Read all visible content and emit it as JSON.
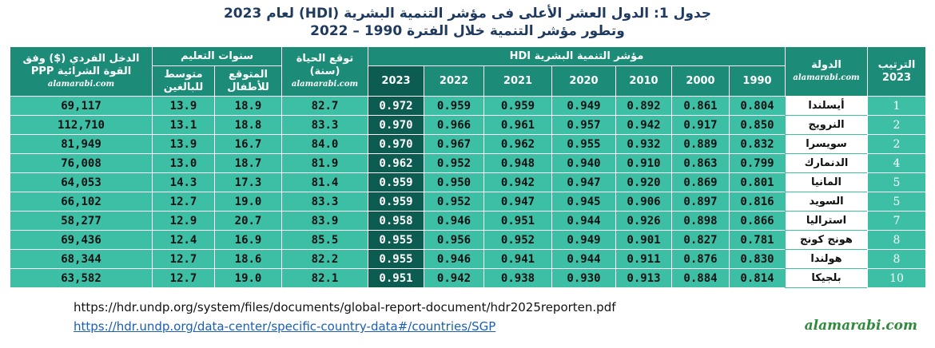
{
  "title": {
    "line1": "جدول 1:  الدول العشر الأعلى فى مؤشر التنمية البشرية  (HDI)  لعام 2023",
    "line2": "وتطور مؤشر التنمية خلال الفترة  1990 – 2022"
  },
  "table": {
    "headers": {
      "rank": "الترتيب 2023",
      "country": "الدولة",
      "country_site": "alamarabi.com",
      "hdi": "مؤشر التنمية البشرية HDI",
      "years": [
        "1990",
        "2000",
        "2010",
        "2020",
        "2021",
        "2022",
        "2023"
      ],
      "life": "توقع الحياة (سنة)",
      "life_site": "alamarabi.com",
      "education": "سنوات التعليم",
      "expected": "المتوقع للأطفال",
      "mean": "متوسط للبالغين",
      "income": "الدخل الفردي ($) وفق القوة الشرائية PPP",
      "income_site": "alamarabi.com"
    },
    "rows": [
      [
        "1",
        "أيسلندا",
        "0.804",
        "0.861",
        "0.892",
        "0.949",
        "0.959",
        "0.959",
        "0.972",
        "82.7",
        "18.9",
        "13.9",
        "69,117"
      ],
      [
        "2",
        "النرويج",
        "0.850",
        "0.917",
        "0.942",
        "0.957",
        "0.961",
        "0.966",
        "0.970",
        "83.3",
        "18.8",
        "13.1",
        "112,710"
      ],
      [
        "2",
        "سويسرا",
        "0.832",
        "0.889",
        "0.932",
        "0.955",
        "0.962",
        "0.967",
        "0.970",
        "84.0",
        "16.7",
        "13.9",
        "81,949"
      ],
      [
        "4",
        "الدنمارك",
        "0.799",
        "0.863",
        "0.910",
        "0.940",
        "0.948",
        "0.952",
        "0.962",
        "81.9",
        "18.7",
        "13.0",
        "76,008"
      ],
      [
        "5",
        "المانيا",
        "0.801",
        "0.869",
        "0.920",
        "0.947",
        "0.942",
        "0.950",
        "0.959",
        "81.4",
        "17.3",
        "14.3",
        "64,053"
      ],
      [
        "5",
        "السويد",
        "0.816",
        "0.897",
        "0.906",
        "0.945",
        "0.947",
        "0.952",
        "0.959",
        "83.3",
        "19.0",
        "12.7",
        "66,102"
      ],
      [
        "7",
        "استراليا",
        "0.866",
        "0.898",
        "0.926",
        "0.944",
        "0.951",
        "0.946",
        "0.958",
        "83.9",
        "20.7",
        "12.9",
        "58,277"
      ],
      [
        "8",
        "هونج كونج",
        "0.781",
        "0.827",
        "0.901",
        "0.949",
        "0.952",
        "0.956",
        "0.955",
        "85.5",
        "16.9",
        "12.4",
        "69,436"
      ],
      [
        "8",
        "هولندا",
        "0.830",
        "0.876",
        "0.911",
        "0.944",
        "0.941",
        "0.946",
        "0.955",
        "82.2",
        "18.6",
        "12.7",
        "68,344"
      ],
      [
        "10",
        "بلجيكا",
        "0.814",
        "0.884",
        "0.913",
        "0.930",
        "0.938",
        "0.942",
        "0.951",
        "82.1",
        "19.0",
        "12.7",
        "63,582"
      ]
    ]
  },
  "footer": {
    "source1": "https://hdr.undp.org/system/files/documents/global-report-document/hdr2025reporten.pdf",
    "source2": "https://hdr.undp.org/data-center/specific-country-data#/countries/SGP",
    "site": "alamarabi.com"
  }
}
